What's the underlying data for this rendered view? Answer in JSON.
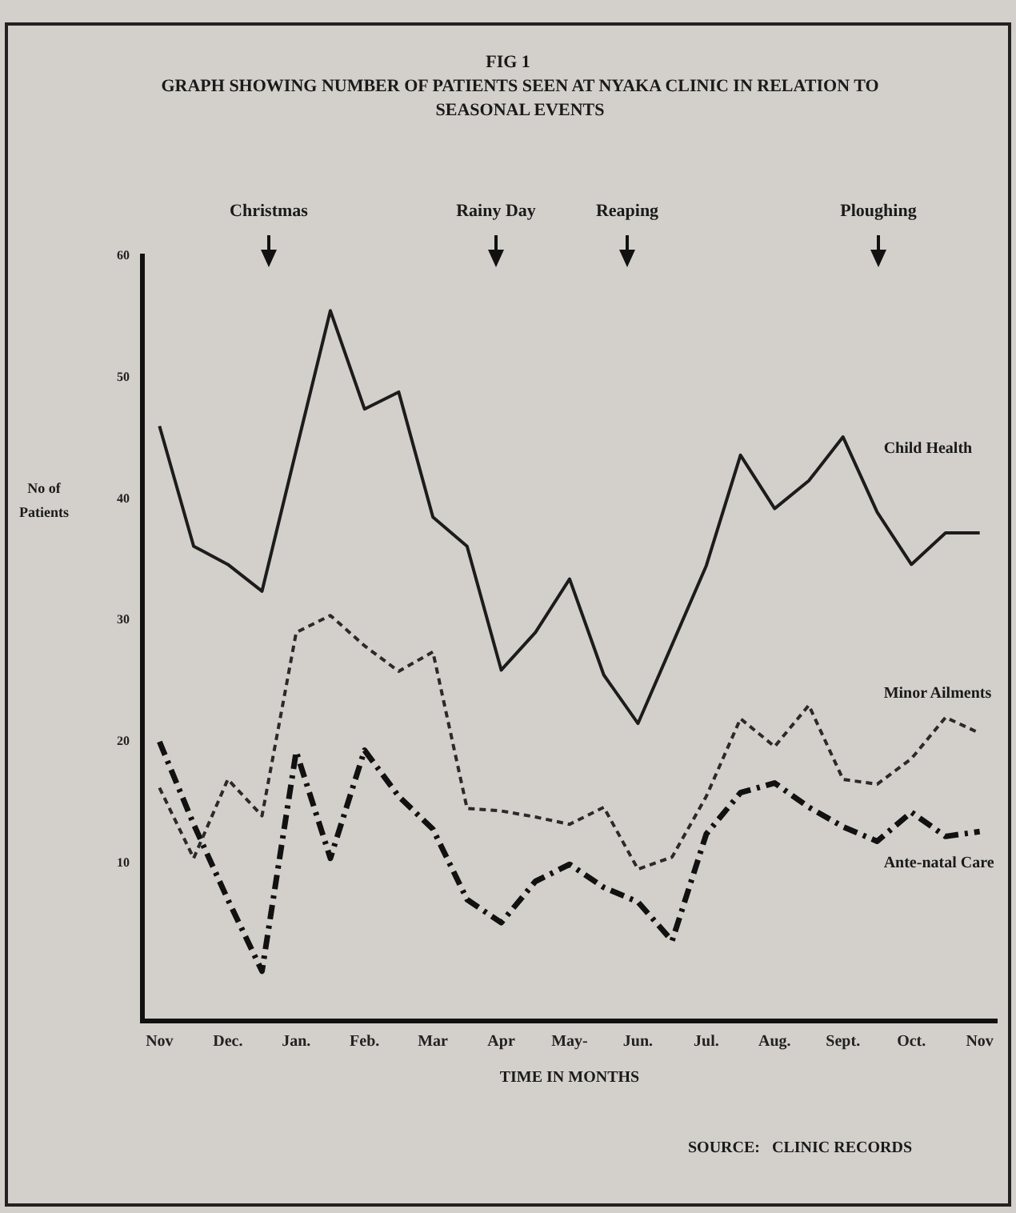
{
  "chart_data": {
    "type": "line",
    "title": "FIG 1",
    "subtitle": "GRAPH SHOWING NUMBER OF PATIENTS SEEN AT NYAKA CLINIC IN RELATION  TO SEASONAL EVENTS",
    "xlabel": "TIME IN MONTHS",
    "ylabel": "No of Patients",
    "categories": [
      "Nov",
      null,
      "Dec.",
      null,
      "Jan.",
      null,
      "Feb.",
      null,
      "Mar",
      null,
      "Apr",
      null,
      "May-",
      null,
      "Jun.",
      null,
      "Jul.",
      null,
      "Aug.",
      null,
      "Sept.",
      null,
      "Oct.",
      null,
      "Nov"
    ],
    "ylim": [
      -3,
      60
    ],
    "yticks": [
      10,
      20,
      30,
      40,
      50,
      60
    ],
    "grid": false,
    "legend": false,
    "marker": "none",
    "series": [
      {
        "name": "Child Health",
        "color": "#1c1c1c",
        "line_style": "solid",
        "values": [
          46,
          36.1,
          34.6,
          32.4,
          44,
          55.5,
          47.4,
          48.8,
          38.5,
          36.1,
          25.9,
          29,
          33.4,
          25.5,
          21.5,
          28,
          34.5,
          43.6,
          39.2,
          41.5,
          45.1,
          38.9,
          34.6,
          37.2,
          37.2
        ]
      },
      {
        "name": "Minor Ailments",
        "color": "#2a2a2a",
        "line_style": "dotted",
        "values": [
          16.2,
          10.4,
          16.9,
          13.9,
          29,
          30.4,
          27.9,
          25.8,
          27.4,
          14.5,
          14.3,
          13.8,
          13.2,
          14.6,
          9.5,
          10.5,
          15.5,
          21.9,
          19.6,
          23,
          16.9,
          16.5,
          18.6,
          22,
          20.7
        ]
      },
      {
        "name": "Ante-natal Care",
        "color": "#111111",
        "line_style": "dashed",
        "values": [
          20,
          13.2,
          7,
          1.1,
          19.2,
          10.4,
          19.3,
          15.5,
          12.8,
          7,
          5.1,
          8.5,
          9.9,
          8,
          6.8,
          3.6,
          12.4,
          15.8,
          16.6,
          14.6,
          13,
          11.8,
          14.2,
          12.2,
          12.6
        ]
      }
    ],
    "annotations": [
      "Christmas",
      "Rainy Day",
      "Reaping",
      "Ploughing",
      "SOURCE:   CLINIC RECORDS"
    ]
  }
}
